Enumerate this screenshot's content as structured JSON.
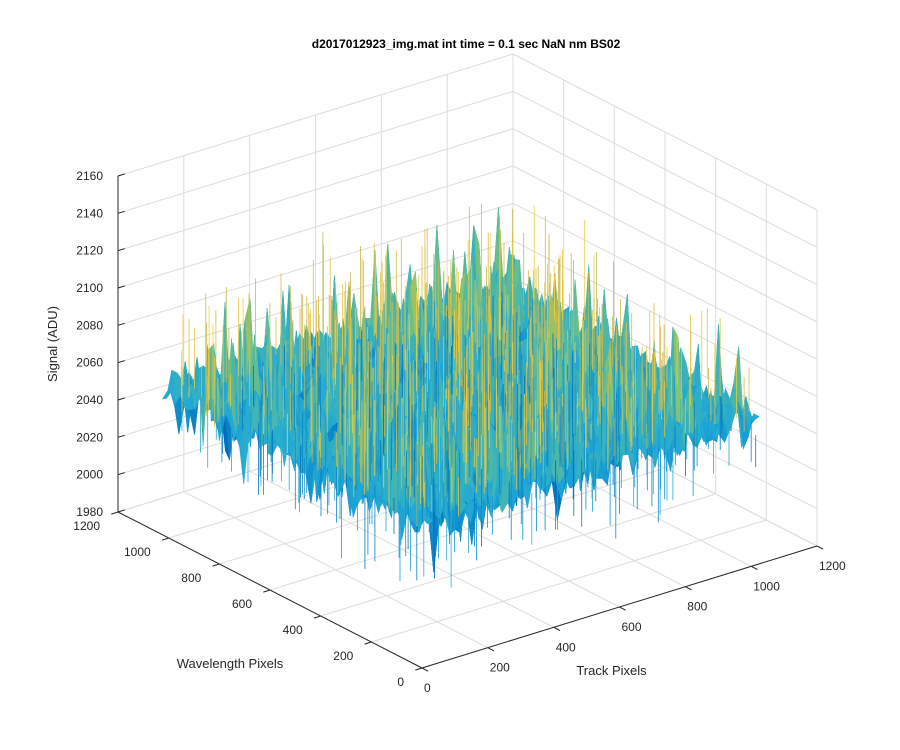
{
  "chart_data": {
    "type": "surface",
    "title": "d2017012923_img.mat int time = 0.1 sec  NaN nm BS02",
    "xlabel": "Track Pixels",
    "ylabel": "Wavelength Pixels",
    "zlabel": "Signal (ADU)",
    "xlim": [
      0,
      1200
    ],
    "ylim": [
      0,
      1200
    ],
    "zlim": [
      1980,
      2160
    ],
    "xticks": [
      "0",
      "200",
      "400",
      "600",
      "800",
      "1000",
      "1200"
    ],
    "yticks": [
      "0",
      "200",
      "400",
      "600",
      "800",
      "1000",
      "1200"
    ],
    "zticks": [
      "1980",
      "2000",
      "2020",
      "2040",
      "2060",
      "2080",
      "2100",
      "2120",
      "2140",
      "2160"
    ],
    "data_extent": {
      "x": [
        0,
        1024
      ],
      "y": [
        0,
        1024
      ]
    },
    "signal_mean": 2058,
    "signal_min": 1995,
    "signal_max": 2145,
    "grid": true,
    "colormap": [
      "#3e26a8",
      "#0072bd",
      "#1fa8d8",
      "#4cb8a8",
      "#8ec36b",
      "#d9b944",
      "#f2d33a"
    ]
  }
}
